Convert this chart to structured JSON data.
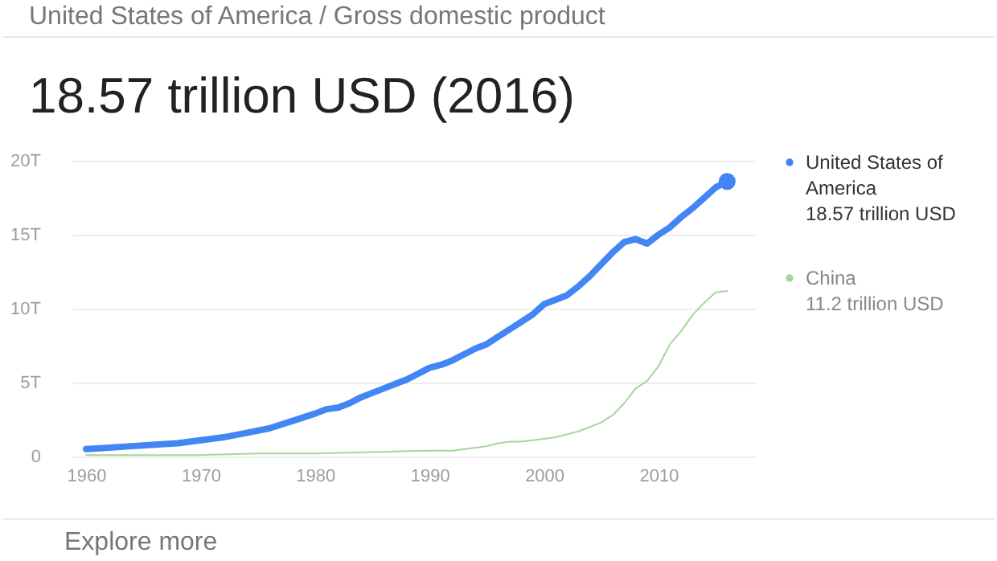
{
  "chart_data": {
    "type": "line",
    "title": "18.57 trillion USD (2016)",
    "annotations": [
      "United States of America / Gross domestic product",
      "18.57 trillion USD",
      "11.2 trillion USD",
      "Explore more"
    ],
    "series": [
      {
        "name": "United States of America",
        "color": "#4285f4",
        "x": [
          1960,
          1962,
          1964,
          1966,
          1968,
          1970,
          1972,
          1974,
          1976,
          1978,
          1980,
          1981,
          1982,
          1983,
          1984,
          1985,
          1986,
          1987,
          1988,
          1989,
          1990,
          1991,
          1992,
          1993,
          1994,
          1995,
          1996,
          1997,
          1998,
          1999,
          2000,
          2001,
          2002,
          2003,
          2004,
          2005,
          2006,
          2007,
          2008,
          2009,
          2010,
          2011,
          2012,
          2013,
          2014,
          2015,
          2016
        ],
        "values": [
          0.5,
          0.6,
          0.7,
          0.8,
          0.9,
          1.1,
          1.3,
          1.6,
          1.9,
          2.4,
          2.9,
          3.2,
          3.3,
          3.6,
          4.0,
          4.3,
          4.6,
          4.9,
          5.2,
          5.6,
          6.0,
          6.2,
          6.5,
          6.9,
          7.3,
          7.6,
          8.1,
          8.6,
          9.1,
          9.6,
          10.3,
          10.6,
          10.9,
          11.5,
          12.2,
          13.0,
          13.8,
          14.5,
          14.7,
          14.4,
          15.0,
          15.5,
          16.2,
          16.8,
          17.5,
          18.2,
          18.6
        ]
      },
      {
        "name": "China",
        "color": "#a5d69a",
        "x": [
          1960,
          1965,
          1970,
          1975,
          1980,
          1985,
          1990,
          1992,
          1994,
          1995,
          1996,
          1997,
          1998,
          1999,
          2000,
          2001,
          2002,
          2003,
          2004,
          2005,
          2006,
          2007,
          2008,
          2009,
          2010,
          2011,
          2012,
          2013,
          2014,
          2015,
          2016
        ],
        "values": [
          0.1,
          0.1,
          0.1,
          0.2,
          0.2,
          0.3,
          0.4,
          0.4,
          0.6,
          0.7,
          0.9,
          1.0,
          1.0,
          1.1,
          1.2,
          1.3,
          1.5,
          1.7,
          2.0,
          2.3,
          2.8,
          3.6,
          4.6,
          5.1,
          6.1,
          7.6,
          8.5,
          9.6,
          10.4,
          11.1,
          11.2
        ]
      }
    ],
    "xlim": [
      1958.8,
      2018.5
    ],
    "xticks": [
      1960,
      1970,
      1980,
      1990,
      2000,
      2010
    ],
    "ylim": [
      0,
      20
    ],
    "yticks": [
      0,
      {
        "value": 5,
        "label": "5T"
      },
      {
        "value": 10,
        "label": "10T"
      },
      {
        "value": 15,
        "label": "15T"
      },
      {
        "value": 20,
        "label": "20T"
      }
    ],
    "grid": "y",
    "legend": "right",
    "marker": "none",
    "line_style": "solid"
  }
}
